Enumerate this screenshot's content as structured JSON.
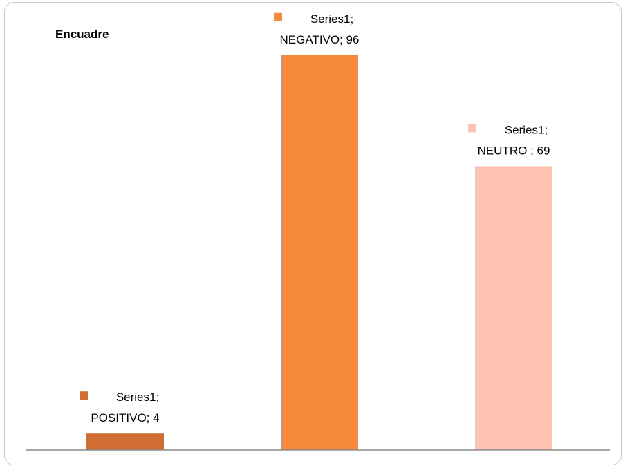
{
  "chart_data": {
    "type": "bar",
    "title": "Encuadre",
    "categories": [
      "POSITIVO",
      "NEGATIVO",
      "NEUTRO"
    ],
    "series": [
      {
        "name": "Series1",
        "values": [
          4,
          96,
          69
        ]
      }
    ],
    "colors": [
      "#cf6d35",
      "#f58a3a",
      "#fdc3b0"
    ],
    "data_labels": [
      {
        "line1": "Series1;",
        "line2": "POSITIVO; 4"
      },
      {
        "line1": "Series1;",
        "line2": "NEGATIVO; 96"
      },
      {
        "line1": "Series1;",
        "line2": "NEUTRO ; 69"
      }
    ],
    "ylim": [
      0,
      100
    ],
    "grid": false,
    "legend": "none"
  }
}
